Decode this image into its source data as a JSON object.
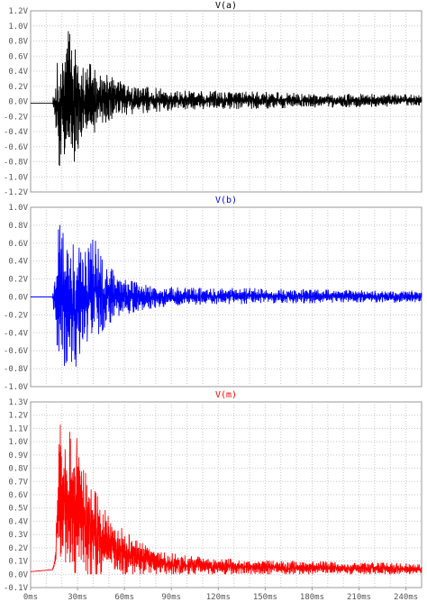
{
  "chart_data": [
    {
      "type": "line",
      "title": "V(a)",
      "color": "#000000",
      "ylim": [
        -1.2,
        1.2
      ],
      "yticks": [
        "1.2V",
        "1.0V",
        "0.8V",
        "0.6V",
        "0.4V",
        "0.2V",
        "0.0V",
        "-0.2V",
        "-0.4V",
        "-0.6V",
        "-0.8V",
        "-1.0V",
        "-1.2V"
      ],
      "xlim": [
        0,
        250
      ],
      "grid": true,
      "envelope": {
        "x": [
          0,
          14,
          16,
          17,
          19,
          20,
          22,
          24,
          26,
          28,
          30,
          32,
          35,
          38,
          42,
          46,
          50,
          55,
          60,
          70,
          80,
          90,
          100,
          120,
          140,
          160,
          180,
          200,
          220,
          250
        ],
        "upper": [
          -0.02,
          -0.02,
          0.4,
          0.5,
          0.85,
          0.6,
          0.78,
          1.08,
          0.75,
          0.85,
          0.7,
          0.5,
          0.45,
          0.5,
          0.4,
          0.35,
          0.35,
          0.28,
          0.25,
          0.2,
          0.18,
          0.15,
          0.14,
          0.13,
          0.13,
          0.12,
          0.1,
          0.1,
          0.1,
          0.09
        ],
        "lower": [
          -0.03,
          -0.03,
          -0.4,
          -0.9,
          -1.15,
          -0.7,
          -0.7,
          -0.95,
          -0.7,
          -0.9,
          -0.8,
          -0.55,
          -0.5,
          -0.45,
          -0.4,
          -0.32,
          -0.28,
          -0.22,
          -0.18,
          -0.16,
          -0.14,
          -0.12,
          -0.11,
          -0.1,
          -0.1,
          -0.09,
          -0.08,
          -0.08,
          -0.07,
          -0.07
        ]
      }
    },
    {
      "type": "line",
      "title": "V(b)",
      "color": "#0000ff",
      "ylim": [
        -1.0,
        1.0
      ],
      "yticks": [
        "1.0V",
        "0.8V",
        "0.6V",
        "0.4V",
        "0.2V",
        "0.0V",
        "-0.2V",
        "-0.4V",
        "-0.6V",
        "-0.8V",
        "-1.0V"
      ],
      "xlim": [
        0,
        250
      ],
      "grid": true,
      "envelope": {
        "x": [
          0,
          14,
          16,
          18,
          20,
          22,
          24,
          26,
          28,
          30,
          33,
          36,
          40,
          45,
          50,
          55,
          60,
          70,
          80,
          90,
          100,
          120,
          140,
          160,
          180,
          200,
          220,
          250
        ],
        "upper": [
          0.0,
          0.0,
          0.35,
          0.8,
          0.93,
          0.85,
          0.7,
          0.75,
          0.6,
          0.55,
          0.55,
          0.5,
          0.7,
          0.45,
          0.35,
          0.25,
          0.2,
          0.15,
          0.12,
          0.11,
          0.1,
          0.1,
          0.1,
          0.09,
          0.08,
          0.08,
          0.07,
          0.07
        ],
        "lower": [
          0.0,
          0.0,
          -0.4,
          -0.88,
          -0.85,
          -0.75,
          -0.7,
          -0.88,
          -0.85,
          -0.7,
          -0.55,
          -0.5,
          -0.45,
          -0.4,
          -0.3,
          -0.25,
          -0.2,
          -0.15,
          -0.12,
          -0.1,
          -0.09,
          -0.08,
          -0.08,
          -0.07,
          -0.07,
          -0.06,
          -0.06,
          -0.06
        ]
      }
    },
    {
      "type": "line",
      "title": "V(m)",
      "color": "#ff0000",
      "ylim": [
        -0.1,
        1.3
      ],
      "yticks": [
        "1.3V",
        "1.2V",
        "1.1V",
        "1.0V",
        "0.9V",
        "0.8V",
        "0.7V",
        "0.6V",
        "0.5V",
        "0.4V",
        "0.3V",
        "0.2V",
        "0.1V",
        "0.0V",
        "-0.1V"
      ],
      "xlim": [
        0,
        250
      ],
      "xticks": [
        "0ms",
        "30ms",
        "60ms",
        "90ms",
        "120ms",
        "150ms",
        "180ms",
        "210ms",
        "240ms"
      ],
      "grid": true,
      "envelope": {
        "x": [
          0,
          14,
          15,
          16,
          18,
          20,
          22,
          24,
          26,
          28,
          30,
          33,
          36,
          40,
          45,
          50,
          55,
          60,
          70,
          80,
          90,
          100,
          120,
          140,
          160,
          180,
          200,
          220,
          250
        ],
        "upper": [
          0.02,
          0.04,
          0.1,
          0.2,
          1.2,
          1.27,
          1.1,
          1.05,
          1.1,
          0.95,
          1.2,
          0.8,
          0.75,
          0.65,
          0.55,
          0.45,
          0.4,
          0.32,
          0.25,
          0.2,
          0.16,
          0.14,
          0.12,
          0.11,
          0.1,
          0.1,
          0.09,
          0.09,
          0.08
        ],
        "lower": [
          0.02,
          0.03,
          0.04,
          0.05,
          0.05,
          0.03,
          0.02,
          0.02,
          0.01,
          0.01,
          0.01,
          0.01,
          0.0,
          0.0,
          0.0,
          0.0,
          0.0,
          0.0,
          0.0,
          0.0,
          0.0,
          0.0,
          0.0,
          0.0,
          0.0,
          0.0,
          0.0,
          0.0,
          0.0
        ]
      }
    }
  ]
}
